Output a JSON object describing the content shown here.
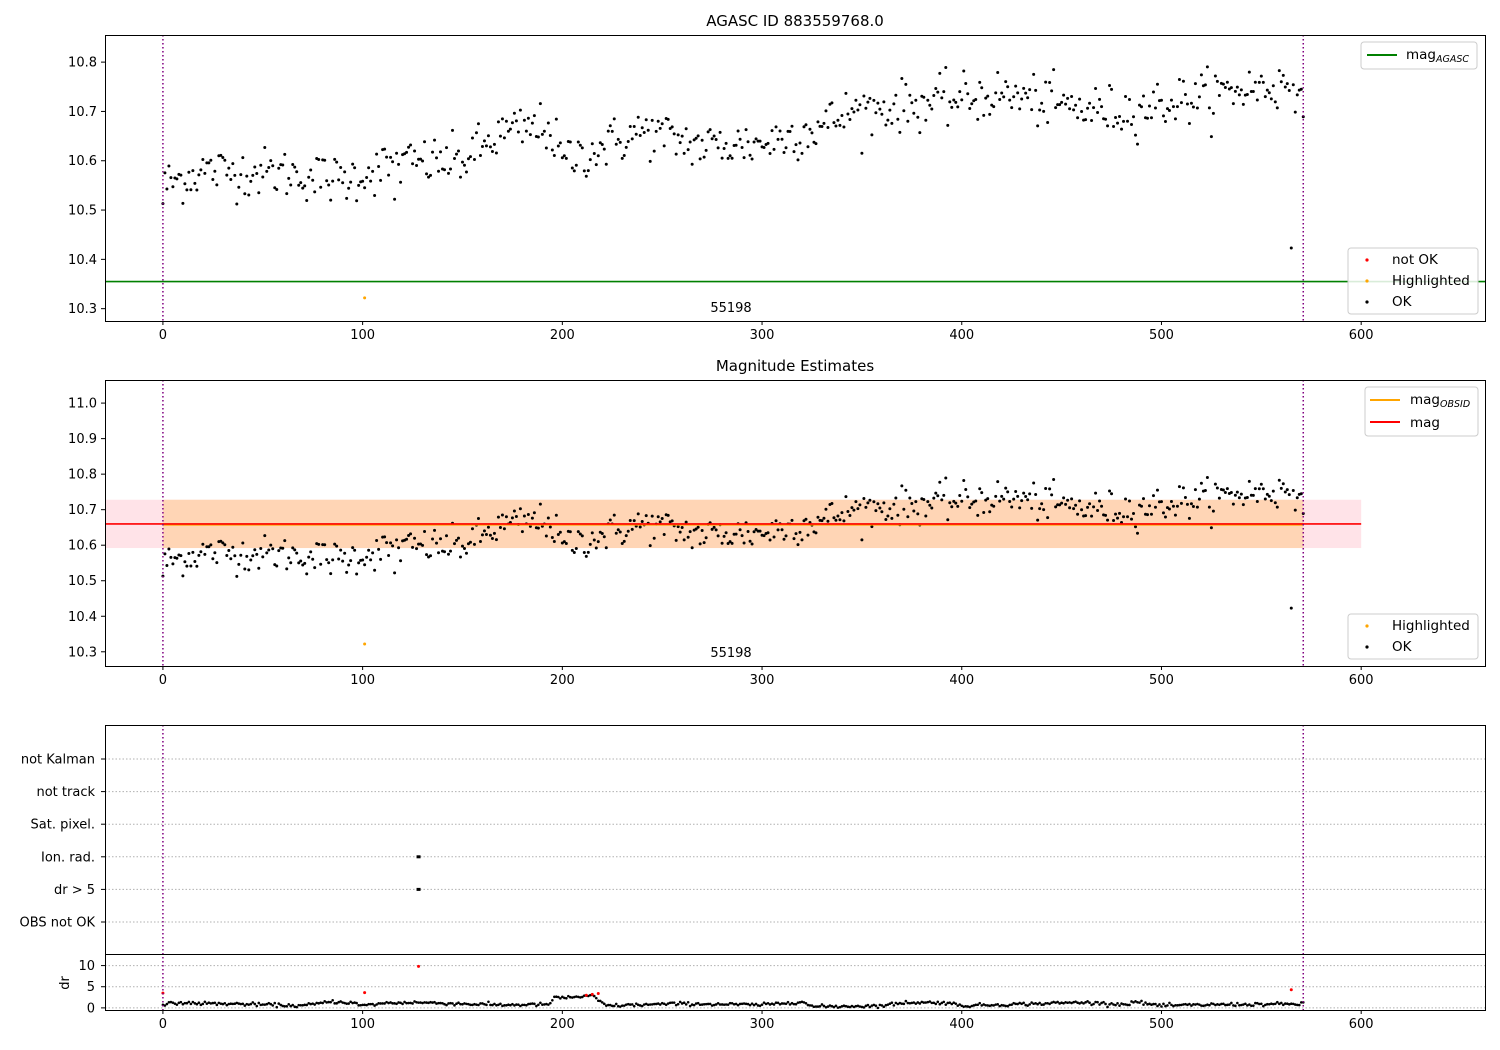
{
  "figure": {
    "background": "#ffffff"
  },
  "chart_data": [
    {
      "type": "scatter",
      "title": "AGASC ID 883559768.0",
      "xlim": [
        -29,
        662
      ],
      "ylim": [
        10.275,
        10.855
      ],
      "xticks": [
        0,
        100,
        200,
        300,
        400,
        500,
        600
      ],
      "yticks": [
        10.3,
        10.4,
        10.5,
        10.6,
        10.7,
        10.8
      ],
      "vlines": [
        0,
        571
      ],
      "hlines": [
        {
          "name": "mag_AGASC",
          "y": 10.355,
          "color": "#008000"
        }
      ],
      "annotation": {
        "text": "55198",
        "x": 285,
        "y": 10.295
      },
      "legends": [
        {
          "position": "top-right",
          "entries": [
            {
              "label": "mag",
              "sub": "AGASC",
              "kind": "line",
              "color": "#008000"
            }
          ]
        },
        {
          "position": "bottom-right",
          "entries": [
            {
              "label": "not OK",
              "kind": "point",
              "color": "#ff0000"
            },
            {
              "label": "Highlighted",
              "kind": "point",
              "color": "#ffa500"
            },
            {
              "label": "OK",
              "kind": "point",
              "color": "#000000"
            }
          ]
        }
      ],
      "series": [
        {
          "name": "OK",
          "color": "#000000",
          "trend": {
            "x": [
              0,
              20,
              60,
              90,
              105,
              120,
              150,
              170,
              193,
              200,
              215,
              240,
              270,
              300,
              330,
              345,
              380,
              420,
              460,
              480,
              500,
              540,
              571
            ],
            "y": [
              10.55,
              10.58,
              10.575,
              10.56,
              10.58,
              10.595,
              10.6,
              10.655,
              10.67,
              10.6,
              10.62,
              10.66,
              10.63,
              10.635,
              10.67,
              10.7,
              10.715,
              10.735,
              10.705,
              10.7,
              10.715,
              10.745,
              10.755
            ]
          },
          "scatter_sd": 0.025,
          "outliers": [
            {
              "x": 565,
              "y": 10.423
            },
            {
              "x": 0,
              "y": 10.513
            },
            {
              "x": 116,
              "y": 10.522
            }
          ]
        },
        {
          "name": "Highlighted",
          "color": "#ffa500",
          "points": [
            {
              "x": 101,
              "y": 10.322
            }
          ]
        }
      ]
    },
    {
      "type": "scatter",
      "title": "Magnitude Estimates",
      "xlim": [
        -29,
        662
      ],
      "ylim": [
        10.26,
        11.065
      ],
      "xticks": [
        0,
        100,
        200,
        300,
        400,
        500,
        600
      ],
      "yticks": [
        10.3,
        10.4,
        10.5,
        10.6,
        10.7,
        10.8,
        10.9,
        11.0
      ],
      "vlines": [
        0,
        571
      ],
      "annotation": {
        "text": "55198",
        "x": 285,
        "y": 10.285
      },
      "bands": [
        {
          "name": "mag band",
          "x": [
            -29,
            600
          ],
          "y": [
            10.592,
            10.728
          ],
          "color": "#ffc0cb"
        },
        {
          "name": "mag_OBSID band",
          "x": [
            0,
            571
          ],
          "y": [
            10.592,
            10.728
          ],
          "color": "#ffa500"
        }
      ],
      "hlines": [
        {
          "name": "mag_OBSID",
          "y": 10.658,
          "color": "#ffa500",
          "x": [
            0,
            571
          ]
        },
        {
          "name": "mag",
          "y": 10.66,
          "color": "#ff0000",
          "x": [
            -29,
            600
          ]
        }
      ],
      "legends": [
        {
          "position": "top-right",
          "entries": [
            {
              "label": "mag",
              "sub": "OBSID",
              "kind": "line",
              "color": "#ffa500"
            },
            {
              "label": "mag",
              "kind": "line",
              "color": "#ff0000"
            }
          ]
        },
        {
          "position": "bottom-right",
          "entries": [
            {
              "label": "Highlighted",
              "kind": "point",
              "color": "#ffa500"
            },
            {
              "label": "OK",
              "kind": "point",
              "color": "#000000"
            }
          ]
        }
      ],
      "series": [
        {
          "name": "OK",
          "color": "#000000",
          "same_as_panel": 0
        },
        {
          "name": "Highlighted",
          "color": "#ffa500",
          "points": [
            {
              "x": 101,
              "y": 10.322
            }
          ]
        }
      ]
    },
    {
      "type": "scatter",
      "title": "",
      "xlim": [
        -29,
        662
      ],
      "xticks": [
        0,
        100,
        200,
        300,
        400,
        500,
        600
      ],
      "vlines": [
        0,
        571
      ],
      "flags": {
        "categories": [
          "not Kalman",
          "not track",
          "Sat. pixel.",
          "Ion. rad.",
          "dr > 5",
          "OBS not OK"
        ],
        "points": [
          {
            "category": "Ion. rad.",
            "x": 128
          },
          {
            "category": "dr > 5",
            "x": 128
          }
        ]
      },
      "dr": {
        "ylabel": "dr",
        "ylim": [
          -0.5,
          12.5
        ],
        "yticks": [
          0,
          5,
          10
        ],
        "trend_ok": {
          "x": [
            0,
            5,
            40,
            70,
            85,
            95,
            100,
            110,
            127,
            140,
            170,
            193,
            196,
            215,
            222,
            260,
            300,
            320,
            325,
            360,
            372,
            395,
            398,
            430,
            460,
            483,
            485,
            500,
            530,
            571
          ],
          "y": [
            0.4,
            1.2,
            0.9,
            0.5,
            1.5,
            1.2,
            0.5,
            1.1,
            1.3,
            1.1,
            0.7,
            0.8,
            2.3,
            2.8,
            0.5,
            1.0,
            0.7,
            1.5,
            0.3,
            0.5,
            1.3,
            1.2,
            0.5,
            0.9,
            1.3,
            0.8,
            1.5,
            0.5,
            0.8,
            0.9
          ]
        },
        "red_points": [
          {
            "x": 0,
            "y": 3.5
          },
          {
            "x": 101,
            "y": 3.6
          },
          {
            "x": 128,
            "y": 9.8
          },
          {
            "x": 212,
            "y": 3.0
          },
          {
            "x": 215,
            "y": 3.2
          },
          {
            "x": 218,
            "y": 3.4
          },
          {
            "x": 565,
            "y": 4.3
          }
        ]
      }
    }
  ]
}
